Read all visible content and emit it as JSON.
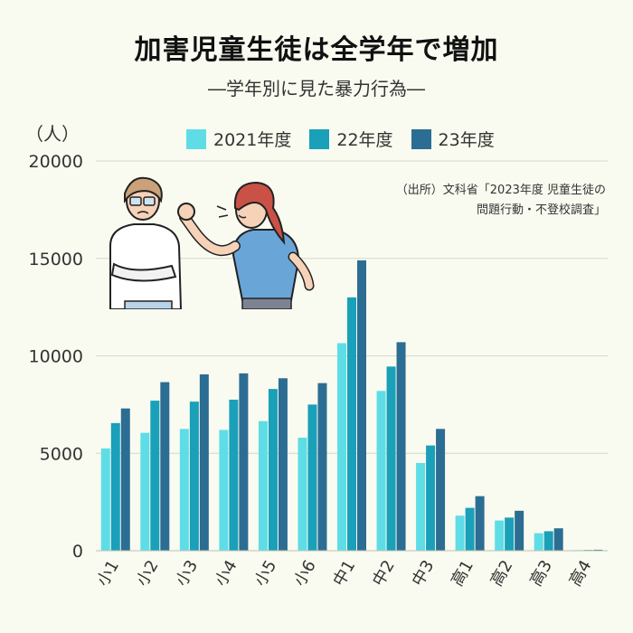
{
  "header": {
    "title": "加害児童生徒は全学年で増加",
    "subtitle": "―学年別に見た暴力行為―",
    "unit": "（人）"
  },
  "source": {
    "line1": "（出所）文科省「2023年度 児童生徒の",
    "line2": "問題行動・不登校調査」"
  },
  "chart_data": {
    "type": "bar",
    "categories": [
      "小1",
      "小2",
      "小3",
      "小4",
      "小5",
      "小6",
      "中1",
      "中2",
      "中3",
      "高1",
      "高2",
      "高3",
      "高4"
    ],
    "series": [
      {
        "name": "2021年度",
        "color": "#5fdde6",
        "values": [
          5250,
          6050,
          6250,
          6200,
          6650,
          5800,
          10650,
          8200,
          4500,
          1800,
          1550,
          900,
          30
        ]
      },
      {
        "name": "22年度",
        "color": "#1aa0b8",
        "values": [
          6550,
          7700,
          7650,
          7750,
          8300,
          7500,
          13000,
          9450,
          5400,
          2200,
          1700,
          1000,
          40
        ]
      },
      {
        "name": "23年度",
        "color": "#2c6d93",
        "values": [
          7300,
          8650,
          9050,
          9100,
          8850,
          8600,
          14900,
          10700,
          6250,
          2800,
          2050,
          1150,
          50
        ]
      }
    ],
    "ylim": [
      0,
      20000
    ],
    "yticks": [
      0,
      5000,
      10000,
      15000,
      20000
    ],
    "grid": true,
    "legend_position": "top"
  },
  "illustration": {
    "boy_icon": "scared-boy-icon",
    "girl_icon": "angry-girl-icon"
  }
}
